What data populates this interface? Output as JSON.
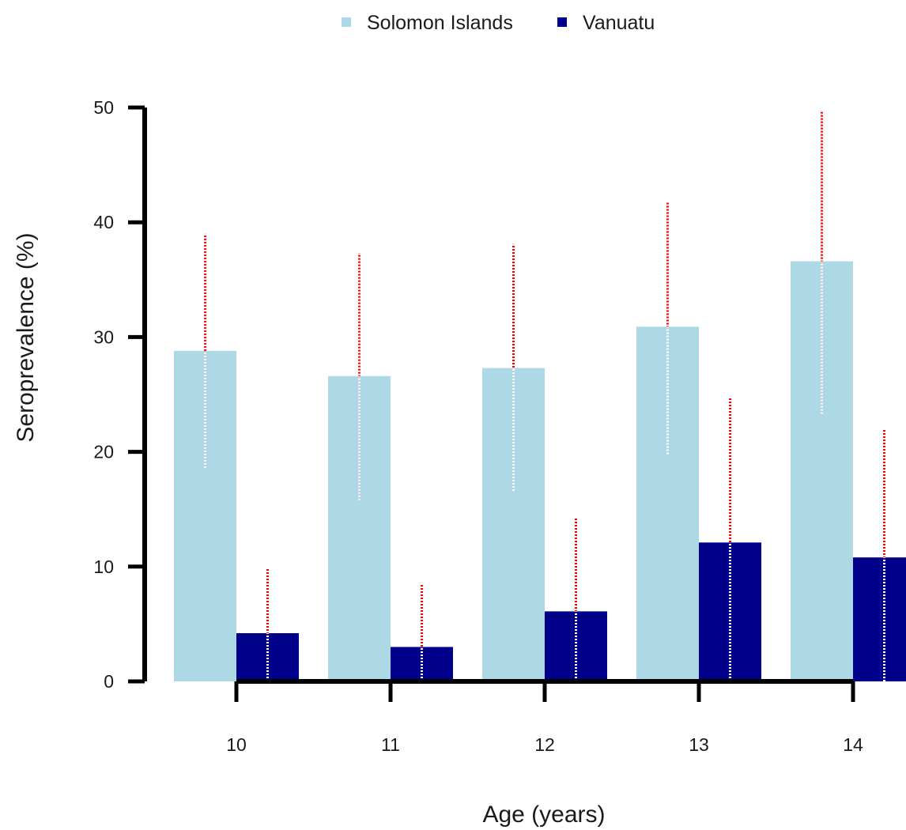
{
  "chart_data": {
    "type": "bar",
    "categories": [
      "10",
      "11",
      "12",
      "13",
      "14"
    ],
    "xlabel": "Age (years)",
    "ylabel": "Seroprevalence (%)",
    "ylim": [
      0,
      50
    ],
    "yticks": [
      0,
      10,
      20,
      30,
      40,
      50
    ],
    "legend_position": "top-center",
    "grid": false,
    "series": [
      {
        "name": "Solomon Islands",
        "color": "#add8e6",
        "values": [
          28.8,
          26.6,
          27.3,
          30.9,
          36.6
        ],
        "ci_lower": [
          18.6,
          15.8,
          16.6,
          19.8,
          23.3
        ],
        "ci_upper": [
          39.0,
          37.3,
          38.1,
          41.7,
          49.6
        ]
      },
      {
        "name": "Vanuatu",
        "color": "#00008b",
        "values": [
          4.2,
          3.0,
          6.1,
          12.1,
          10.8
        ],
        "ci_lower": [
          0.0,
          0.0,
          0.0,
          0.0,
          0.0
        ],
        "ci_upper": [
          9.9,
          8.5,
          14.2,
          24.8,
          22.0
        ]
      }
    ],
    "error_bar_color": "#ff0000",
    "error_bar_inner_color": "#ffffff"
  }
}
